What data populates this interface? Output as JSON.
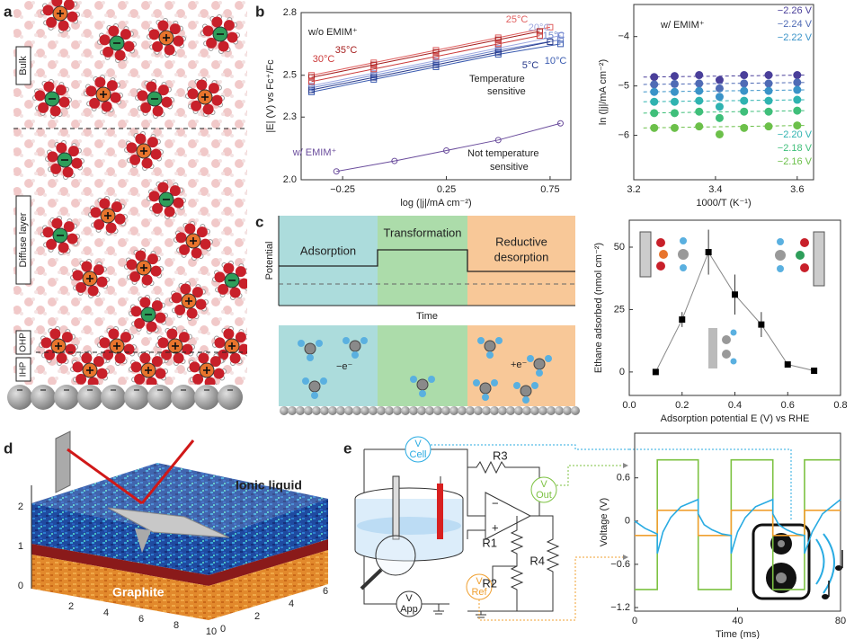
{
  "panel_labels": [
    "a",
    "b",
    "c",
    "d",
    "e"
  ],
  "panel_a": {
    "layers": [
      "Bulk",
      "Diffuse layer",
      "OHP",
      "IHP"
    ]
  },
  "panel_c": {
    "phases": [
      "Adsorption",
      "Transformation"
    ],
    "phase_3_lines": [
      "Reductive",
      "desorption"
    ],
    "y_label": "Potential",
    "x_label": "Time",
    "electron_labels": [
      "−e⁻",
      "+e⁻"
    ]
  },
  "panel_d": {
    "labels": [
      "Ionic liquid",
      "Graphite"
    ],
    "z_ticks": [
      0,
      1,
      2
    ],
    "x_ticks": [
      2,
      4,
      6,
      8,
      10
    ],
    "y_ticks": [
      0,
      2,
      4,
      6
    ]
  },
  "panel_e": {
    "meters": [
      {
        "symbol": "V",
        "name": "Cell"
      },
      {
        "symbol": "V",
        "name": "Out"
      },
      {
        "symbol": "V",
        "name": "Ref"
      },
      {
        "symbol": "V",
        "name": "App"
      }
    ],
    "resistors": [
      "R3",
      "R1",
      "R2",
      "R4"
    ],
    "opamp": [
      "−",
      "+"
    ]
  },
  "chart_data": [
    {
      "type": "line",
      "x_label": "log (|j|/mA cm⁻²)",
      "y_label": "|E| (V) vs Fc⁺/Fc",
      "xlim": [
        -0.45,
        0.85
      ],
      "ylim": [
        2.0,
        2.8
      ],
      "xticks": [
        {
          "value": -0.25,
          "label": "−0.25"
        },
        0.25,
        0.75
      ],
      "yticks": [
        {
          "value": 2,
          "label": "2.0"
        },
        2.3,
        2.5,
        2.8
      ],
      "annotations": [
        "w/o EMIM⁺",
        "Temperature",
        "sensitive",
        "Not temperature",
        "sensitive"
      ],
      "markers": "open",
      "series": [
        {
          "name": "25°C",
          "color": "#e06060",
          "marker": "square",
          "x": [
            -0.4,
            -0.1,
            0.2,
            0.5,
            0.75
          ],
          "values": [
            2.5,
            2.56,
            2.62,
            2.68,
            2.73
          ]
        },
        {
          "name": "20°C",
          "color": "#9fa8e0",
          "marker": "square",
          "x": [
            -0.4,
            -0.1,
            0.2,
            0.5,
            0.8
          ],
          "values": [
            2.45,
            2.51,
            2.57,
            2.63,
            2.69
          ]
        },
        {
          "name": "15°C",
          "color": "#6f86cc",
          "marker": "square",
          "x": [
            -0.4,
            -0.1,
            0.2,
            0.5,
            0.8
          ],
          "values": [
            2.44,
            2.5,
            2.56,
            2.62,
            2.67
          ]
        },
        {
          "name": "10°C",
          "color": "#3a5bb0",
          "marker": "square",
          "x": [
            -0.4,
            -0.1,
            0.2,
            0.5,
            0.8
          ],
          "values": [
            2.42,
            2.48,
            2.54,
            2.6,
            2.65
          ]
        },
        {
          "name": "5°C",
          "color": "#27398a",
          "marker": "square",
          "x": [
            -0.4,
            -0.1,
            0.2,
            0.5,
            0.75
          ],
          "values": [
            2.43,
            2.49,
            2.55,
            2.61,
            2.66
          ]
        },
        {
          "name": "35°C",
          "color": "#a51d1d",
          "marker": "square",
          "x": [
            -0.4,
            -0.1,
            0.2,
            0.5,
            0.7
          ],
          "values": [
            2.49,
            2.55,
            2.61,
            2.67,
            2.71
          ]
        },
        {
          "name": "30°C",
          "color": "#cc3b3b",
          "marker": "square",
          "x": [
            -0.4,
            -0.1,
            0.2,
            0.5,
            0.7
          ],
          "values": [
            2.47,
            2.53,
            2.59,
            2.65,
            2.69
          ]
        },
        {
          "name": "w/ EMIM⁺",
          "color": "#6a4c9c",
          "marker": "circle",
          "x": [
            -0.28,
            0,
            0.25,
            0.5,
            0.8
          ],
          "values": [
            2.04,
            2.09,
            2.14,
            2.19,
            2.27
          ]
        }
      ]
    },
    {
      "type": "scatter",
      "x_label": "1000/T (K⁻¹)",
      "y_label": "ln (|j|/mA cm⁻²)",
      "xlim": [
        3.2,
        3.64
      ],
      "ylim": [
        -6.9,
        -3.35
      ],
      "xticks": [
        3.2,
        3.4,
        3.6
      ],
      "yticks": [
        {
          "value": -4,
          "label": "−4"
        },
        {
          "value": -5,
          "label": "−5"
        },
        {
          "value": -6,
          "label": "−6"
        }
      ],
      "annotations": [
        "w/ EMIM⁺"
      ],
      "dashed_fit": true,
      "x": [
        3.25,
        3.3,
        3.36,
        3.41,
        3.47,
        3.53,
        3.6
      ],
      "series": [
        {
          "name": "−2.26 V",
          "color": "#4a3f9a",
          "values": [
            -4.82,
            -4.8,
            -4.78,
            -4.88,
            -4.78,
            -4.78,
            -4.78
          ]
        },
        {
          "name": "−2.24 V",
          "color": "#4f6bb5",
          "values": [
            -4.97,
            -4.96,
            -4.95,
            -5.05,
            -4.95,
            -4.95,
            -4.93
          ]
        },
        {
          "name": "−2.22 V",
          "color": "#3a93c8",
          "values": [
            -5.12,
            -5.12,
            -5.1,
            -5.22,
            -5.1,
            -5.1,
            -5.08
          ]
        },
        {
          "name": "−2.20 V",
          "color": "#2fb3b0",
          "values": [
            -5.32,
            -5.32,
            -5.3,
            -5.42,
            -5.3,
            -5.3,
            -5.28
          ]
        },
        {
          "name": "−2.18 V",
          "color": "#3fbf7a",
          "values": [
            -5.55,
            -5.55,
            -5.52,
            -5.65,
            -5.52,
            -5.52,
            -5.5
          ]
        },
        {
          "name": "−2.16 V",
          "color": "#6cc04a",
          "values": [
            -5.85,
            -5.85,
            -5.82,
            -5.98,
            -5.85,
            -5.82,
            -5.8
          ]
        }
      ]
    },
    {
      "type": "line",
      "x_label": "Adsorption potential E (V) vs RHE",
      "y_label": "Ethane adsorbed (nmol cm⁻²)",
      "xlim": [
        0,
        0.8
      ],
      "ylim": [
        -9.4,
        60.8
      ],
      "xticks": [
        {
          "value": 0,
          "label": "0.0"
        },
        0.2,
        0.4,
        0.6,
        0.8
      ],
      "yticks": [
        0,
        25,
        50
      ],
      "markers": "filled",
      "series": [
        {
          "color": "#000000",
          "marker": "square",
          "x": [
            0.1,
            0.2,
            0.3,
            0.4,
            0.5,
            0.6,
            0.7
          ],
          "values": [
            0,
            21,
            48,
            31,
            19,
            3,
            0.5
          ],
          "errors": [
            0,
            3,
            9,
            8,
            5,
            0,
            0
          ]
        }
      ]
    },
    {
      "type": "line",
      "x_label": "Time (ms)",
      "y_label": "Voltage (V)",
      "xlim": [
        0,
        80
      ],
      "ylim": [
        -1.25,
        1.22
      ],
      "xticks": [
        0,
        40,
        80
      ],
      "yticks": [
        {
          "value": -1.2,
          "label": "−1.2"
        },
        {
          "value": -0.6,
          "label": "−0.6"
        },
        0,
        0.6
      ],
      "markers": "none",
      "series": [
        {
          "color": "#7dc242",
          "x": [
            0,
            8.8,
            8.8,
            24.7,
            24.7,
            37.5,
            37.5,
            53.7,
            53.7,
            66,
            66,
            80
          ],
          "values": [
            -0.95,
            -0.95,
            0.85,
            0.85,
            -0.95,
            -0.95,
            0.85,
            0.85,
            -0.95,
            -0.95,
            0.85,
            0.85
          ]
        },
        {
          "color": "#f0a030",
          "x": [
            0,
            8.8,
            8.8,
            24.7,
            24.7,
            37.5,
            37.5,
            53.7,
            53.7,
            66,
            66,
            80
          ],
          "values": [
            -0.2,
            -0.2,
            0.15,
            0.15,
            -0.2,
            -0.2,
            0.15,
            0.15,
            -0.2,
            -0.2,
            0.15,
            0.15
          ]
        },
        {
          "color": "#29abe2",
          "x": [
            0,
            4,
            8.8,
            8.8,
            11,
            14,
            18,
            24.7,
            24.7,
            27,
            30,
            34,
            37.5,
            37.5,
            40,
            43,
            47,
            53.7,
            53.7,
            56,
            59,
            63,
            66,
            66,
            69,
            73,
            80
          ],
          "values": [
            0.0,
            -0.1,
            -0.18,
            -0.45,
            -0.15,
            0.05,
            0.2,
            0.3,
            0.1,
            -0.05,
            -0.12,
            -0.18,
            -0.2,
            -0.45,
            -0.15,
            0.05,
            0.2,
            0.3,
            0.1,
            -0.05,
            -0.12,
            -0.18,
            -0.2,
            -0.45,
            -0.15,
            0.1,
            0.3
          ]
        }
      ]
    }
  ]
}
